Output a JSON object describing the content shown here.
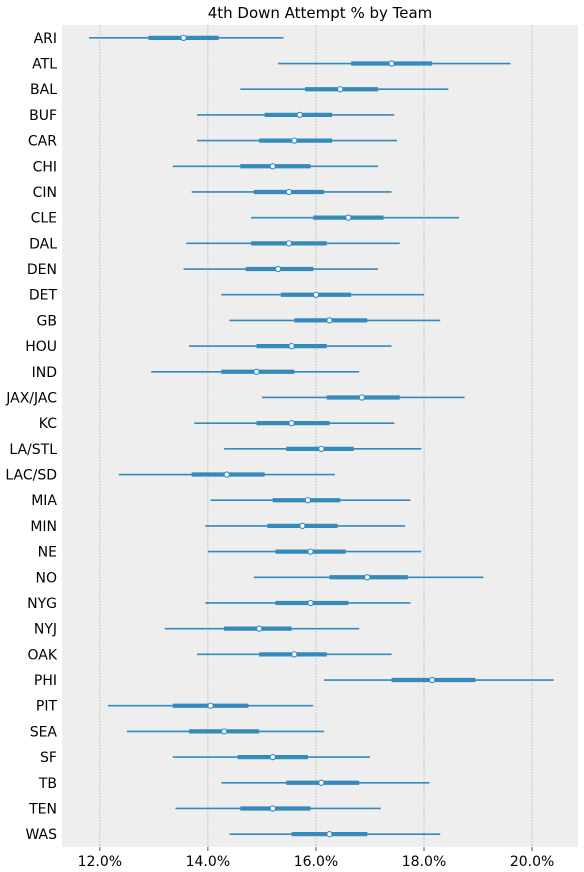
{
  "chart_data": {
    "type": "forest",
    "title": "4th Down Attempt % by Team",
    "xlabel": "",
    "ylabel": "",
    "xlim": [
      11.3,
      20.85
    ],
    "xticks": [
      12,
      14,
      16,
      18,
      20
    ],
    "xtick_labels": [
      "12.0%",
      "14.0%",
      "16.0%",
      "18.0%",
      "20.0%"
    ],
    "grid": "vertical",
    "colors": {
      "interval": "#348abd",
      "point_fill": "#ffffff",
      "background": "#eeeeee",
      "grid": "#b0b0b0"
    },
    "teams": [
      {
        "team": "ARI",
        "lo": 11.8,
        "q1": 12.9,
        "mean": 13.55,
        "q3": 14.2,
        "hi": 15.4
      },
      {
        "team": "ATL",
        "lo": 15.3,
        "q1": 16.65,
        "mean": 17.4,
        "q3": 18.15,
        "hi": 19.6
      },
      {
        "team": "BAL",
        "lo": 14.6,
        "q1": 15.8,
        "mean": 16.45,
        "q3": 17.15,
        "hi": 18.45
      },
      {
        "team": "BUF",
        "lo": 13.8,
        "q1": 15.05,
        "mean": 15.7,
        "q3": 16.3,
        "hi": 17.45
      },
      {
        "team": "CAR",
        "lo": 13.8,
        "q1": 14.95,
        "mean": 15.6,
        "q3": 16.3,
        "hi": 17.5
      },
      {
        "team": "CHI",
        "lo": 13.35,
        "q1": 14.6,
        "mean": 15.2,
        "q3": 15.9,
        "hi": 17.15
      },
      {
        "team": "CIN",
        "lo": 13.7,
        "q1": 14.85,
        "mean": 15.5,
        "q3": 16.15,
        "hi": 17.4
      },
      {
        "team": "CLE",
        "lo": 14.8,
        "q1": 15.95,
        "mean": 16.6,
        "q3": 17.25,
        "hi": 18.65
      },
      {
        "team": "DAL",
        "lo": 13.6,
        "q1": 14.8,
        "mean": 15.5,
        "q3": 16.2,
        "hi": 17.55
      },
      {
        "team": "DEN",
        "lo": 13.55,
        "q1": 14.7,
        "mean": 15.3,
        "q3": 15.95,
        "hi": 17.15
      },
      {
        "team": "DET",
        "lo": 14.25,
        "q1": 15.35,
        "mean": 16.0,
        "q3": 16.65,
        "hi": 18.0
      },
      {
        "team": "GB",
        "lo": 14.4,
        "q1": 15.6,
        "mean": 16.25,
        "q3": 16.95,
        "hi": 18.3
      },
      {
        "team": "HOU",
        "lo": 13.65,
        "q1": 14.9,
        "mean": 15.55,
        "q3": 16.2,
        "hi": 17.4
      },
      {
        "team": "IND",
        "lo": 12.95,
        "q1": 14.25,
        "mean": 14.9,
        "q3": 15.6,
        "hi": 16.8
      },
      {
        "team": "JAX/JAC",
        "lo": 15.0,
        "q1": 16.2,
        "mean": 16.85,
        "q3": 17.55,
        "hi": 18.75
      },
      {
        "team": "KC",
        "lo": 13.75,
        "q1": 14.9,
        "mean": 15.55,
        "q3": 16.25,
        "hi": 17.45
      },
      {
        "team": "LA/STL",
        "lo": 14.3,
        "q1": 15.45,
        "mean": 16.1,
        "q3": 16.7,
        "hi": 17.95
      },
      {
        "team": "LAC/SD",
        "lo": 12.35,
        "q1": 13.7,
        "mean": 14.35,
        "q3": 15.05,
        "hi": 16.35
      },
      {
        "team": "MIA",
        "lo": 14.05,
        "q1": 15.2,
        "mean": 15.85,
        "q3": 16.45,
        "hi": 17.75
      },
      {
        "team": "MIN",
        "lo": 13.95,
        "q1": 15.1,
        "mean": 15.75,
        "q3": 16.4,
        "hi": 17.65
      },
      {
        "team": "NE",
        "lo": 14.0,
        "q1": 15.25,
        "mean": 15.9,
        "q3": 16.55,
        "hi": 17.95
      },
      {
        "team": "NO",
        "lo": 14.85,
        "q1": 16.25,
        "mean": 16.95,
        "q3": 17.7,
        "hi": 19.1
      },
      {
        "team": "NYG",
        "lo": 13.95,
        "q1": 15.25,
        "mean": 15.9,
        "q3": 16.6,
        "hi": 17.75
      },
      {
        "team": "NYJ",
        "lo": 13.2,
        "q1": 14.3,
        "mean": 14.95,
        "q3": 15.55,
        "hi": 16.8
      },
      {
        "team": "OAK",
        "lo": 13.8,
        "q1": 14.95,
        "mean": 15.6,
        "q3": 16.2,
        "hi": 17.4
      },
      {
        "team": "PHI",
        "lo": 16.15,
        "q1": 17.4,
        "mean": 18.15,
        "q3": 18.95,
        "hi": 20.4
      },
      {
        "team": "PIT",
        "lo": 12.15,
        "q1": 13.35,
        "mean": 14.05,
        "q3": 14.75,
        "hi": 15.95
      },
      {
        "team": "SEA",
        "lo": 12.5,
        "q1": 13.65,
        "mean": 14.3,
        "q3": 14.95,
        "hi": 16.15
      },
      {
        "team": "SF",
        "lo": 13.35,
        "q1": 14.55,
        "mean": 15.2,
        "q3": 15.85,
        "hi": 17.0
      },
      {
        "team": "TB",
        "lo": 14.25,
        "q1": 15.45,
        "mean": 16.1,
        "q3": 16.8,
        "hi": 18.1
      },
      {
        "team": "TEN",
        "lo": 13.4,
        "q1": 14.6,
        "mean": 15.2,
        "q3": 15.9,
        "hi": 17.2
      },
      {
        "team": "WAS",
        "lo": 14.4,
        "q1": 15.55,
        "mean": 16.25,
        "q3": 16.95,
        "hi": 18.3
      }
    ]
  }
}
